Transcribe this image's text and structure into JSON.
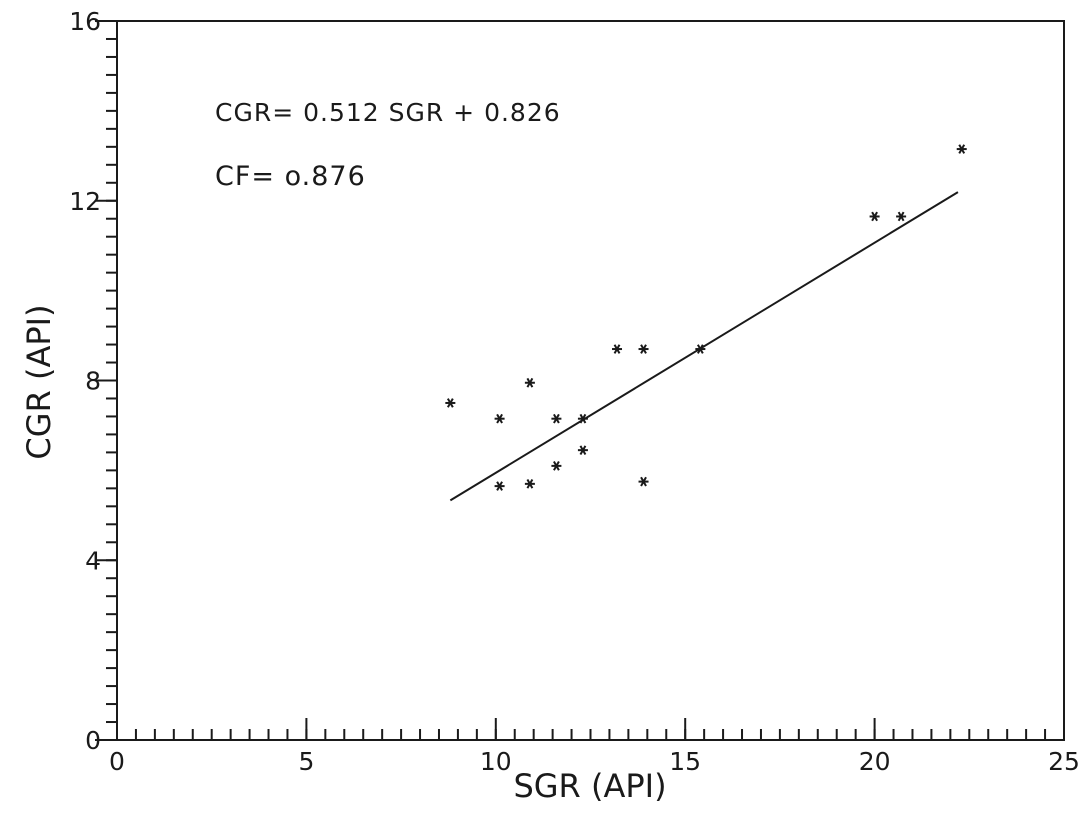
{
  "chart_data": {
    "type": "scatter",
    "title": "",
    "xlabel": "SGR (API)",
    "ylabel": "CGR (API)",
    "xlim": [
      0,
      25
    ],
    "ylim": [
      0,
      16
    ],
    "xticks": [
      0,
      5,
      10,
      15,
      20,
      25
    ],
    "yticks": [
      0,
      4,
      8,
      12,
      16
    ],
    "xtick_labels": [
      "0",
      "5",
      "10",
      "15",
      "20",
      "25"
    ],
    "ytick_labels": [
      "0",
      "4",
      "8",
      "12",
      "16"
    ],
    "x_minor_step": 0.5,
    "y_minor_step": 0.4,
    "grid": false,
    "marker": "asterisk",
    "points": [
      {
        "x": 8.8,
        "y": 7.5
      },
      {
        "x": 10.1,
        "y": 7.15
      },
      {
        "x": 10.1,
        "y": 5.65
      },
      {
        "x": 10.9,
        "y": 7.95
      },
      {
        "x": 10.9,
        "y": 5.7
      },
      {
        "x": 11.6,
        "y": 7.15
      },
      {
        "x": 11.6,
        "y": 6.1
      },
      {
        "x": 12.3,
        "y": 7.15
      },
      {
        "x": 12.3,
        "y": 6.45
      },
      {
        "x": 13.2,
        "y": 8.7
      },
      {
        "x": 13.9,
        "y": 8.7
      },
      {
        "x": 13.9,
        "y": 5.75
      },
      {
        "x": 15.4,
        "y": 8.7
      },
      {
        "x": 20.0,
        "y": 11.65
      },
      {
        "x": 20.7,
        "y": 11.65
      },
      {
        "x": 22.3,
        "y": 13.15
      }
    ],
    "fit_line": {
      "slope": 0.512,
      "intercept": 0.826,
      "x_range": [
        8.8,
        22.2
      ]
    },
    "annotations": [
      "CGR= 0.512 SGR + 0.826",
      "CF= o.876"
    ]
  }
}
